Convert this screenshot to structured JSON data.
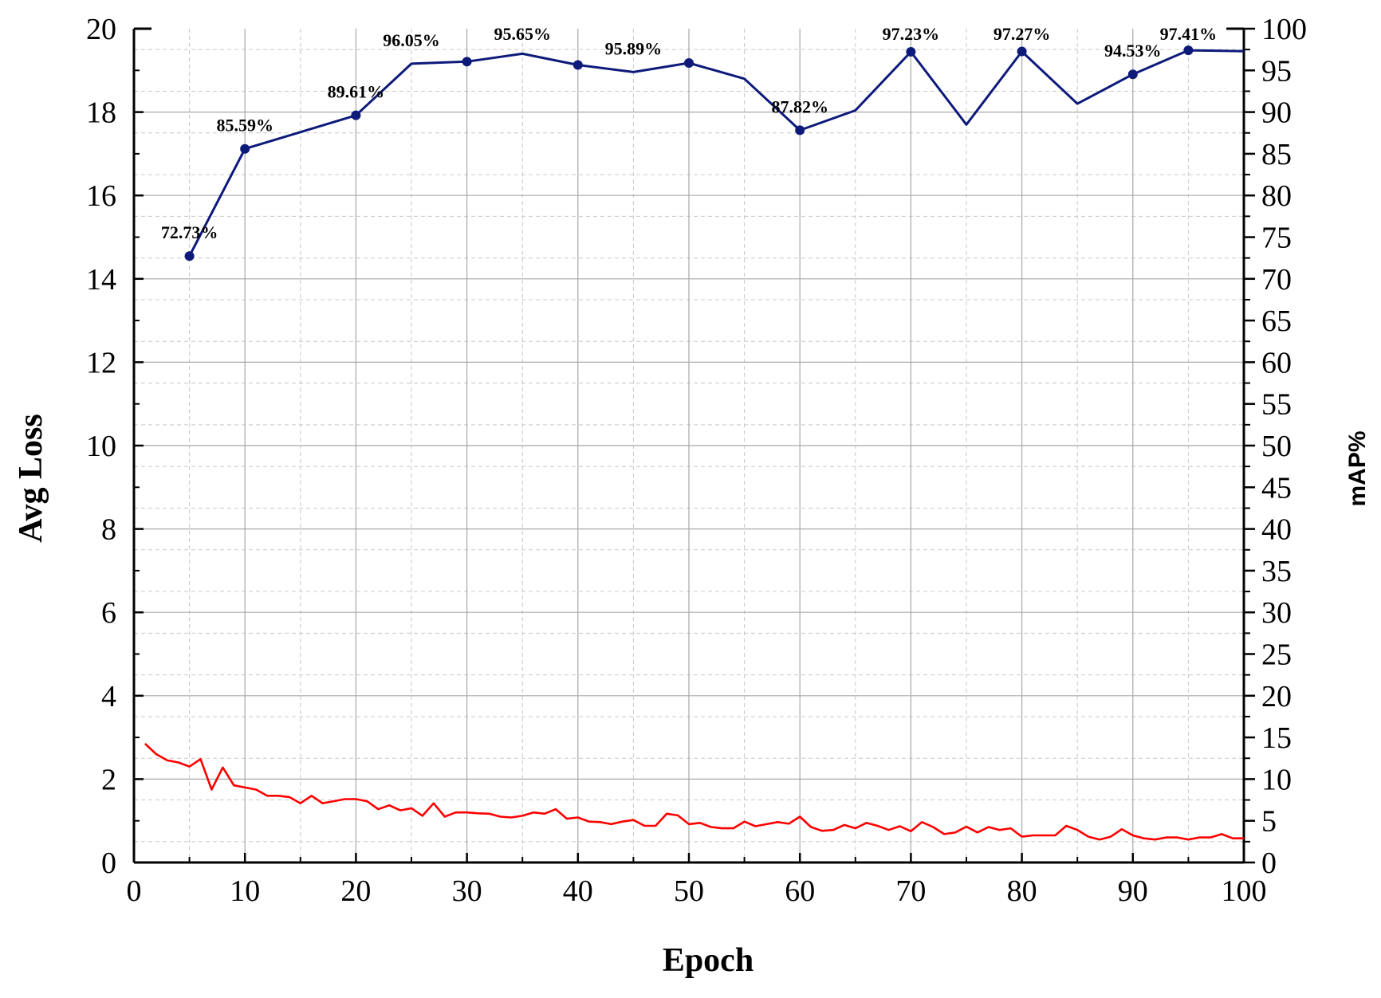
{
  "chart_data": {
    "type": "line",
    "xlabel": "Epoch",
    "ylabel": "Avg Loss",
    "y2label": "mAP%",
    "xlim": [
      0,
      100
    ],
    "ylim": [
      0,
      20
    ],
    "y2lim": [
      0,
      100
    ],
    "x_ticks": [
      0,
      10,
      20,
      30,
      40,
      50,
      60,
      70,
      80,
      90,
      100
    ],
    "y_ticks": [
      0,
      2,
      4,
      6,
      8,
      10,
      12,
      14,
      16,
      18,
      20
    ],
    "y2_ticks": [
      0,
      5,
      10,
      15,
      20,
      25,
      30,
      35,
      40,
      45,
      50,
      55,
      60,
      65,
      70,
      75,
      80,
      85,
      90,
      95,
      100
    ],
    "grid": true,
    "series": [
      {
        "axis": "right",
        "color": "#0d1a7a",
        "markers": true,
        "x": [
          5,
          10,
          20,
          25,
          30,
          35,
          40,
          45,
          50,
          55,
          60,
          65,
          70,
          75,
          80,
          85,
          90,
          95,
          100
        ],
        "values": [
          72.73,
          85.59,
          89.61,
          95.8,
          96.05,
          97.0,
          95.65,
          94.8,
          95.89,
          94.0,
          87.82,
          90.2,
          97.23,
          88.5,
          97.27,
          91.0,
          94.53,
          97.41,
          97.3
        ],
        "marker_x": [
          5,
          10,
          20,
          30,
          40,
          50,
          60,
          70,
          80,
          90,
          95
        ],
        "data_labels": [
          {
            "x": 5,
            "text": "72.73%"
          },
          {
            "x": 10,
            "text": "85.59%"
          },
          {
            "x": 20,
            "text": "89.61%"
          },
          {
            "x": 25,
            "text": "96.05%"
          },
          {
            "x": 35,
            "text": "95.65%"
          },
          {
            "x": 45,
            "text": "95.89%"
          },
          {
            "x": 60,
            "text": "87.82%"
          },
          {
            "x": 70,
            "text": "97.23%"
          },
          {
            "x": 80,
            "text": "97.27%"
          },
          {
            "x": 90,
            "text": "94.53%"
          },
          {
            "x": 95,
            "text": "97.41%"
          }
        ]
      },
      {
        "axis": "left",
        "color": "#ff0000",
        "markers": false,
        "x": [
          1,
          2,
          3,
          4,
          5,
          6,
          7,
          8,
          9,
          10,
          11,
          12,
          13,
          14,
          15,
          16,
          17,
          18,
          19,
          20,
          21,
          22,
          23,
          24,
          25,
          26,
          27,
          28,
          29,
          30,
          31,
          32,
          33,
          34,
          35,
          36,
          37,
          38,
          39,
          40,
          41,
          42,
          43,
          44,
          45,
          46,
          47,
          48,
          49,
          50,
          51,
          52,
          53,
          54,
          55,
          56,
          57,
          58,
          59,
          60,
          61,
          62,
          63,
          64,
          65,
          66,
          67,
          68,
          69,
          70,
          71,
          72,
          73,
          74,
          75,
          76,
          77,
          78,
          79,
          80,
          81,
          82,
          83,
          84,
          85,
          86,
          87,
          88,
          89,
          90,
          91,
          92,
          93,
          94,
          95,
          96,
          97,
          98,
          99,
          100
        ],
        "values": [
          2.85,
          2.6,
          2.45,
          2.4,
          2.3,
          2.48,
          1.75,
          2.28,
          1.85,
          1.8,
          1.75,
          1.6,
          1.6,
          1.57,
          1.42,
          1.6,
          1.42,
          1.47,
          1.52,
          1.52,
          1.47,
          1.28,
          1.37,
          1.25,
          1.3,
          1.12,
          1.42,
          1.1,
          1.2,
          1.2,
          1.18,
          1.17,
          1.1,
          1.08,
          1.12,
          1.2,
          1.17,
          1.28,
          1.05,
          1.08,
          0.98,
          0.97,
          0.92,
          0.98,
          1.02,
          0.88,
          0.88,
          1.17,
          1.13,
          0.92,
          0.95,
          0.85,
          0.82,
          0.82,
          0.98,
          0.87,
          0.92,
          0.97,
          0.93,
          1.1,
          0.85,
          0.76,
          0.78,
          0.9,
          0.82,
          0.95,
          0.88,
          0.78,
          0.87,
          0.75,
          0.97,
          0.85,
          0.68,
          0.72,
          0.86,
          0.72,
          0.85,
          0.78,
          0.82,
          0.62,
          0.65,
          0.65,
          0.65,
          0.88,
          0.78,
          0.62,
          0.55,
          0.62,
          0.8,
          0.65,
          0.58,
          0.55,
          0.6,
          0.6,
          0.55,
          0.6,
          0.6,
          0.68,
          0.58,
          0.58
        ]
      }
    ]
  }
}
